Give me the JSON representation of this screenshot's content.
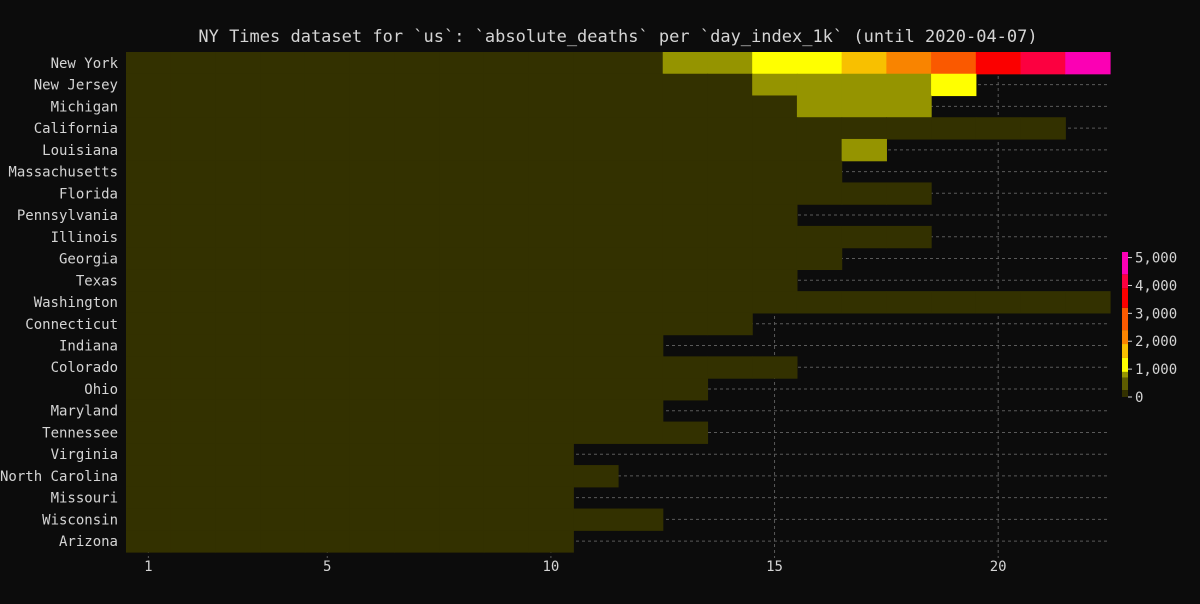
{
  "chart_data": {
    "type": "heatmap",
    "title": "NY Times dataset for `us`: `absolute_deaths` per `day_index_1k` (until 2020-04-07)",
    "xlabel": "",
    "ylabel": "",
    "x_ticks": [
      1,
      5,
      10,
      15,
      20
    ],
    "x_range": [
      1,
      22
    ],
    "grid": true,
    "background_color": "#0c0c0c",
    "colorbar": {
      "placement": "right",
      "ticks": [
        0,
        1000,
        2000,
        3000,
        4000,
        5000
      ],
      "tick_labels": [
        "0",
        "1,000",
        "2,000",
        "3,000",
        "4,000",
        "5,000"
      ],
      "range": [
        0,
        5200
      ]
    },
    "color_scale": [
      {
        "max": 250,
        "color": "#333100"
      },
      {
        "max": 700,
        "color": "#5e5c00"
      },
      {
        "max": 900,
        "color": "#959400"
      },
      {
        "max": 1400,
        "color": "#ffff00"
      },
      {
        "max": 1900,
        "color": "#f8c000"
      },
      {
        "max": 2400,
        "color": "#f98400"
      },
      {
        "max": 3200,
        "color": "#fa5900"
      },
      {
        "max": 3900,
        "color": "#fb0000"
      },
      {
        "max": 4400,
        "color": "#fc0040"
      },
      {
        "max": 99999,
        "color": "#fb00b4"
      }
    ],
    "states": [
      {
        "name": "New York",
        "values": [
          0,
          0,
          0,
          0,
          0,
          0,
          0,
          0,
          0,
          0,
          0,
          0,
          800,
          800,
          1200,
          1300,
          1700,
          2200,
          2600,
          3500,
          4200,
          5000
        ]
      },
      {
        "name": "New Jersey",
        "values": [
          0,
          0,
          0,
          0,
          0,
          0,
          0,
          0,
          0,
          0,
          0,
          0,
          0,
          0,
          800,
          800,
          800,
          800,
          1200
        ]
      },
      {
        "name": "Michigan",
        "values": [
          0,
          0,
          0,
          0,
          0,
          0,
          0,
          0,
          0,
          0,
          0,
          0,
          0,
          0,
          0,
          800,
          800,
          800
        ]
      },
      {
        "name": "California",
        "values": [
          0,
          0,
          0,
          0,
          0,
          0,
          0,
          0,
          0,
          0,
          0,
          0,
          0,
          0,
          0,
          0,
          0,
          0,
          0,
          0,
          0
        ]
      },
      {
        "name": "Louisiana",
        "values": [
          0,
          0,
          0,
          0,
          0,
          0,
          0,
          0,
          0,
          0,
          0,
          0,
          0,
          0,
          0,
          0,
          800
        ]
      },
      {
        "name": "Massachusetts",
        "values": [
          0,
          0,
          0,
          0,
          0,
          0,
          0,
          0,
          0,
          0,
          0,
          0,
          0,
          0,
          0,
          0
        ]
      },
      {
        "name": "Florida",
        "values": [
          0,
          0,
          0,
          0,
          0,
          0,
          0,
          0,
          0,
          0,
          0,
          0,
          0,
          0,
          0,
          0,
          0,
          0
        ]
      },
      {
        "name": "Pennsylvania",
        "values": [
          0,
          0,
          0,
          0,
          0,
          0,
          0,
          0,
          0,
          0,
          0,
          0,
          0,
          0,
          0
        ]
      },
      {
        "name": "Illinois",
        "values": [
          0,
          0,
          0,
          0,
          0,
          0,
          0,
          0,
          0,
          0,
          0,
          0,
          0,
          0,
          0,
          0,
          0,
          0
        ]
      },
      {
        "name": "Georgia",
        "values": [
          0,
          0,
          0,
          0,
          0,
          0,
          0,
          0,
          0,
          0,
          0,
          0,
          0,
          0,
          0,
          0
        ]
      },
      {
        "name": "Texas",
        "values": [
          0,
          0,
          0,
          0,
          0,
          0,
          0,
          0,
          0,
          0,
          0,
          0,
          0,
          0,
          0
        ]
      },
      {
        "name": "Washington",
        "values": [
          0,
          0,
          0,
          0,
          0,
          0,
          0,
          0,
          0,
          0,
          0,
          0,
          0,
          0,
          0,
          0,
          0,
          0,
          0,
          0,
          0,
          0
        ]
      },
      {
        "name": "Connecticut",
        "values": [
          0,
          0,
          0,
          0,
          0,
          0,
          0,
          0,
          0,
          0,
          0,
          0,
          0,
          0
        ]
      },
      {
        "name": "Indiana",
        "values": [
          0,
          0,
          0,
          0,
          0,
          0,
          0,
          0,
          0,
          0,
          0,
          0
        ]
      },
      {
        "name": "Colorado",
        "values": [
          0,
          0,
          0,
          0,
          0,
          0,
          0,
          0,
          0,
          0,
          0,
          0,
          0,
          0,
          0
        ]
      },
      {
        "name": "Ohio",
        "values": [
          0,
          0,
          0,
          0,
          0,
          0,
          0,
          0,
          0,
          0,
          0,
          0,
          0
        ]
      },
      {
        "name": "Maryland",
        "values": [
          0,
          0,
          0,
          0,
          0,
          0,
          0,
          0,
          0,
          0,
          0,
          0
        ]
      },
      {
        "name": "Tennessee",
        "values": [
          0,
          0,
          0,
          0,
          0,
          0,
          0,
          0,
          0,
          0,
          0,
          0,
          0
        ]
      },
      {
        "name": "Virginia",
        "values": [
          0,
          0,
          0,
          0,
          0,
          0,
          0,
          0,
          0,
          0
        ]
      },
      {
        "name": "North Carolina",
        "values": [
          0,
          0,
          0,
          0,
          0,
          0,
          0,
          0,
          0,
          0,
          0
        ]
      },
      {
        "name": "Missouri",
        "values": [
          0,
          0,
          0,
          0,
          0,
          0,
          0,
          0,
          0,
          0
        ]
      },
      {
        "name": "Wisconsin",
        "values": [
          0,
          0,
          0,
          0,
          0,
          0,
          0,
          0,
          0,
          0,
          0,
          0
        ]
      },
      {
        "name": "Arizona",
        "values": [
          0,
          0,
          0,
          0,
          0,
          0,
          0,
          0,
          0,
          0
        ]
      }
    ]
  }
}
